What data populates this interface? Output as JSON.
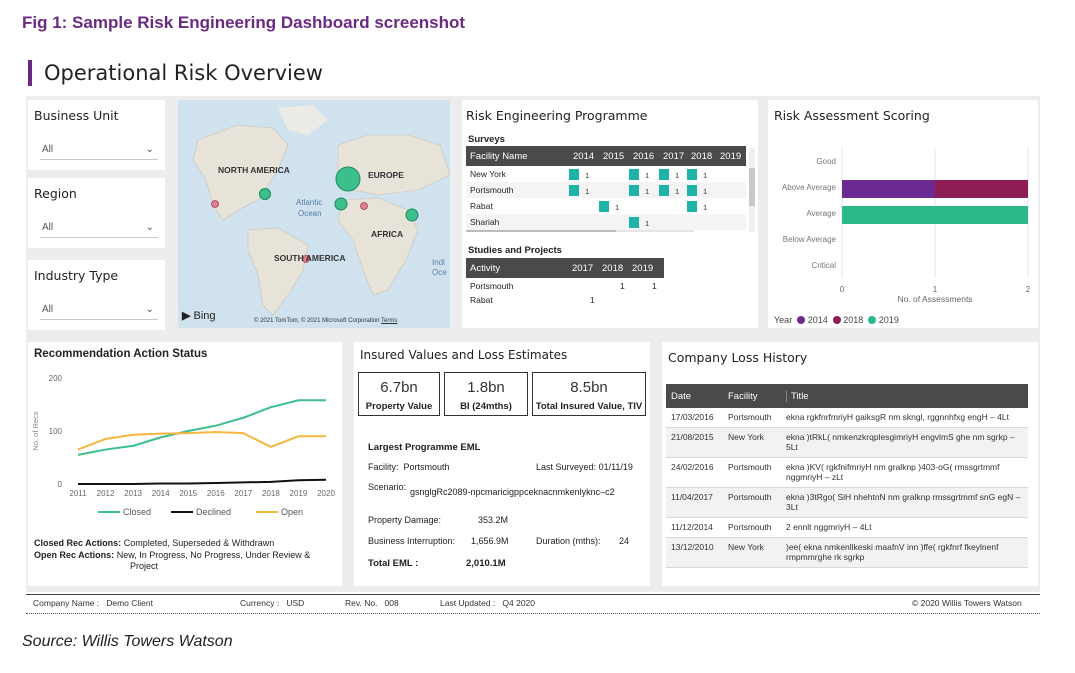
{
  "figure_title": "Fig 1: Sample Risk Engineering Dashboard screenshot",
  "page_title": "Operational Risk Overview",
  "slicers": [
    {
      "label": "Business Unit",
      "value": "All"
    },
    {
      "label": "Region",
      "value": "All"
    },
    {
      "label": "Industry Type",
      "value": "All"
    }
  ],
  "map": {
    "labels": [
      "NORTH AMERICA",
      "EUROPE",
      "Atlantic",
      "Ocean",
      "AFRICA",
      "SOUTH AMERICA",
      "Indi",
      "Oce"
    ],
    "bing": "Bing",
    "copyright": "© 2021 TomTom, © 2021 Microsoft Corporation",
    "terms": "Terms"
  },
  "programme": {
    "title": "Risk Engineering Programme",
    "surveys_title": "Surveys",
    "surveys_headers": [
      "Facility Name",
      "2014",
      "2015",
      "2016",
      "2017",
      "2018",
      "2019"
    ],
    "surveys_rows": [
      {
        "name": "New York",
        "cells": [
          "1",
          "",
          "1",
          "1",
          "1",
          ""
        ]
      },
      {
        "name": "Portsmouth",
        "cells": [
          "1",
          "",
          "1",
          "1",
          "1",
          ""
        ]
      },
      {
        "name": "Rabat",
        "cells": [
          "",
          "1",
          "",
          "",
          "1",
          ""
        ]
      },
      {
        "name": "Shariah",
        "cells": [
          "",
          "",
          "1",
          "",
          "",
          ""
        ]
      }
    ],
    "studies_title": "Studies and Projects",
    "studies_headers": [
      "Activity",
      "2017",
      "2018",
      "2019"
    ],
    "studies_rows": [
      {
        "name": "Portsmouth",
        "cells": [
          "",
          "1",
          "1"
        ]
      },
      {
        "name": "Rabat",
        "cells": [
          "1",
          "",
          ""
        ]
      }
    ]
  },
  "scoring": {
    "title": "Risk Assessment Scoring",
    "categories": [
      "Good",
      "Above Average",
      "Average",
      "Below Average",
      "Critical"
    ],
    "xticks": [
      "0",
      "1",
      "2"
    ],
    "xlabel": "No. of Assessments",
    "legend_title": "Year",
    "legend": [
      {
        "name": "2014",
        "color": "#6b2a92"
      },
      {
        "name": "2018",
        "color": "#8e1c55"
      },
      {
        "name": "2019",
        "color": "#2bb88a"
      }
    ],
    "bars": [
      {
        "category": "Above Average",
        "segments": [
          {
            "year": "2014",
            "value": 1
          },
          {
            "year": "2018",
            "value": 1
          }
        ]
      },
      {
        "category": "Average",
        "segments": [
          {
            "year": "2019",
            "value": 2
          }
        ]
      }
    ]
  },
  "rec_status": {
    "title": "Recommendation Action Status",
    "ylabel": "No. of Recs",
    "closed_label": "Closed Rec Actions:",
    "closed_text": "Completed, Superseded & Withdrawn",
    "open_label": "Open Rec Actions:",
    "open_text": "New, In Progress, No Progress, Under Review &",
    "open_text2": "Project"
  },
  "chart_data": {
    "type": "line",
    "title": "Recommendation Action Status",
    "ylabel": "No. of Recs",
    "xlabel": "",
    "x": [
      "2011",
      "2012",
      "2013",
      "2014",
      "2015",
      "2016",
      "2017",
      "2018",
      "2019",
      "2020"
    ],
    "ylim": [
      0,
      200
    ],
    "yticks": [
      0,
      100,
      200
    ],
    "series": [
      {
        "name": "Closed",
        "color": "#3cbf8a",
        "values": [
          55,
          65,
          72,
          88,
          100,
          110,
          125,
          145,
          158,
          158
        ]
      },
      {
        "name": "Declined",
        "color": "#111111",
        "values": [
          0,
          0,
          0,
          1,
          1,
          2,
          3,
          4,
          7,
          8
        ]
      },
      {
        "name": "Open",
        "color": "#f4b740",
        "values": [
          65,
          85,
          93,
          95,
          96,
          98,
          96,
          70,
          90,
          90
        ]
      }
    ]
  },
  "insured": {
    "title": "Insured Values and Loss Estimates",
    "kpis": [
      {
        "value": "6.7bn",
        "label": "Property Value"
      },
      {
        "value": "1.8bn",
        "label": "BI (24mths)"
      },
      {
        "value": "8.5bn",
        "label": "Total Insured Value, TIV"
      }
    ],
    "eml_title": "Largest Programme EML",
    "facility_label": "Facility:",
    "facility_value": "Portsmouth",
    "last_surveyed_label": "Last Surveyed:",
    "last_surveyed_value": "01/11/19",
    "scenario_label": "Scenario:",
    "scenario_value": "gsnglgRc2089-npcmaricigppceknacnmkenlyknc–c2",
    "property_damage_label": "Property Damage:",
    "property_damage_value": "353.2M",
    "bi_label": "Business Interruption:",
    "bi_value": "1,656.9M",
    "duration_label": "Duration (mths):",
    "duration_value": "24",
    "total_label": "Total EML :",
    "total_value": "2,010.1M"
  },
  "loss_history": {
    "title": "Company Loss History",
    "headers": [
      "Date",
      "Facility",
      "Title"
    ],
    "rows": [
      {
        "date": "17/03/2016",
        "facility": "Portsmouth",
        "title": "ekna rgkfnrfmriyH gaiksgR nm skngl, rggnnhfxg engH – 4Lt"
      },
      {
        "date": "21/08/2015",
        "facility": "New York",
        "title": "ekna )tRkL( nmkenzkrqplesgimriyH engvlmS ghe nm sgrkp – 5Lt"
      },
      {
        "date": "24/02/2016",
        "facility": "Portsmouth",
        "title": "ekna )KV( rgkfnifmriyH nm gralknp )403-oG( rmssgrtmmf nggmriyH – zLt"
      },
      {
        "date": "11/04/2017",
        "facility": "Portsmouth",
        "title": "ekna )3tRgo( SiH nhehtnN nm gralknp rmssgrtmmf snG egN – 3Lt"
      },
      {
        "date": "11/12/2014",
        "facility": "Portsmouth",
        "title": "2 ennlt nggmriyH – 4Lt"
      },
      {
        "date": "13/12/2010",
        "facility": "New York",
        "title": ")ee( ekna nmkenllkeski maafnV inn )ffe( rgkfnrf fkeylnenf rmpmmrghe rk sgrkp"
      }
    ]
  },
  "footer": {
    "company_label": "Company Name :",
    "company_value": "Demo Client",
    "currency_label": "Currency :",
    "currency_value": "USD",
    "rev_label": "Rev. No.",
    "rev_value": "008",
    "updated_label": "Last Updated :",
    "updated_value": "Q4 2020",
    "copyright": "© 2020 Willis Towers Watson"
  },
  "source": "Source: Willis Towers Watson"
}
